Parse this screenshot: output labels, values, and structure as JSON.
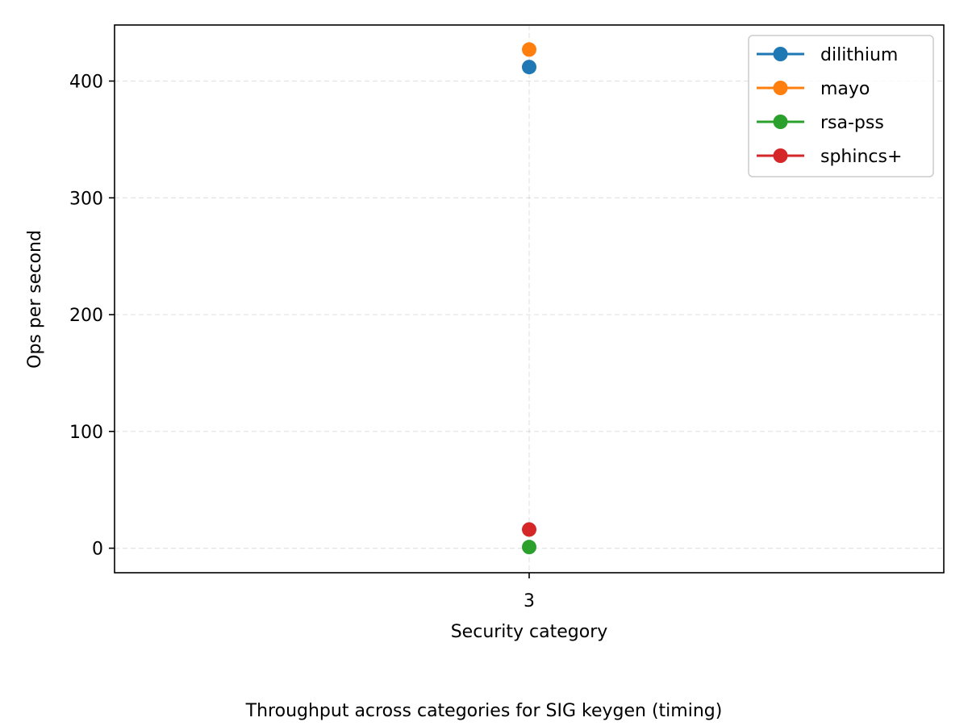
{
  "chart_data": {
    "type": "line",
    "xlabel": "Security category",
    "ylabel": "Ops per second",
    "caption": "Throughput across categories for SIG keygen (timing)",
    "categories": [
      "3"
    ],
    "x": [
      3
    ],
    "xlim": [
      2.8,
      3.2
    ],
    "ylim": [
      -21,
      448
    ],
    "yticks": [
      0,
      100,
      200,
      300,
      400
    ],
    "ytick_labels": [
      "0",
      "100",
      "200",
      "300",
      "400"
    ],
    "xtick_labels": [
      "3"
    ],
    "grid": true,
    "legend_position": "top-right",
    "series": [
      {
        "name": "dilithium",
        "color": "#1f77b4",
        "values": [
          412
        ]
      },
      {
        "name": "mayo",
        "color": "#ff7f0e",
        "values": [
          427
        ]
      },
      {
        "name": "rsa-pss",
        "color": "#2ca02c",
        "values": [
          1
        ]
      },
      {
        "name": "sphincs+",
        "color": "#d62728",
        "values": [
          16
        ]
      }
    ]
  }
}
